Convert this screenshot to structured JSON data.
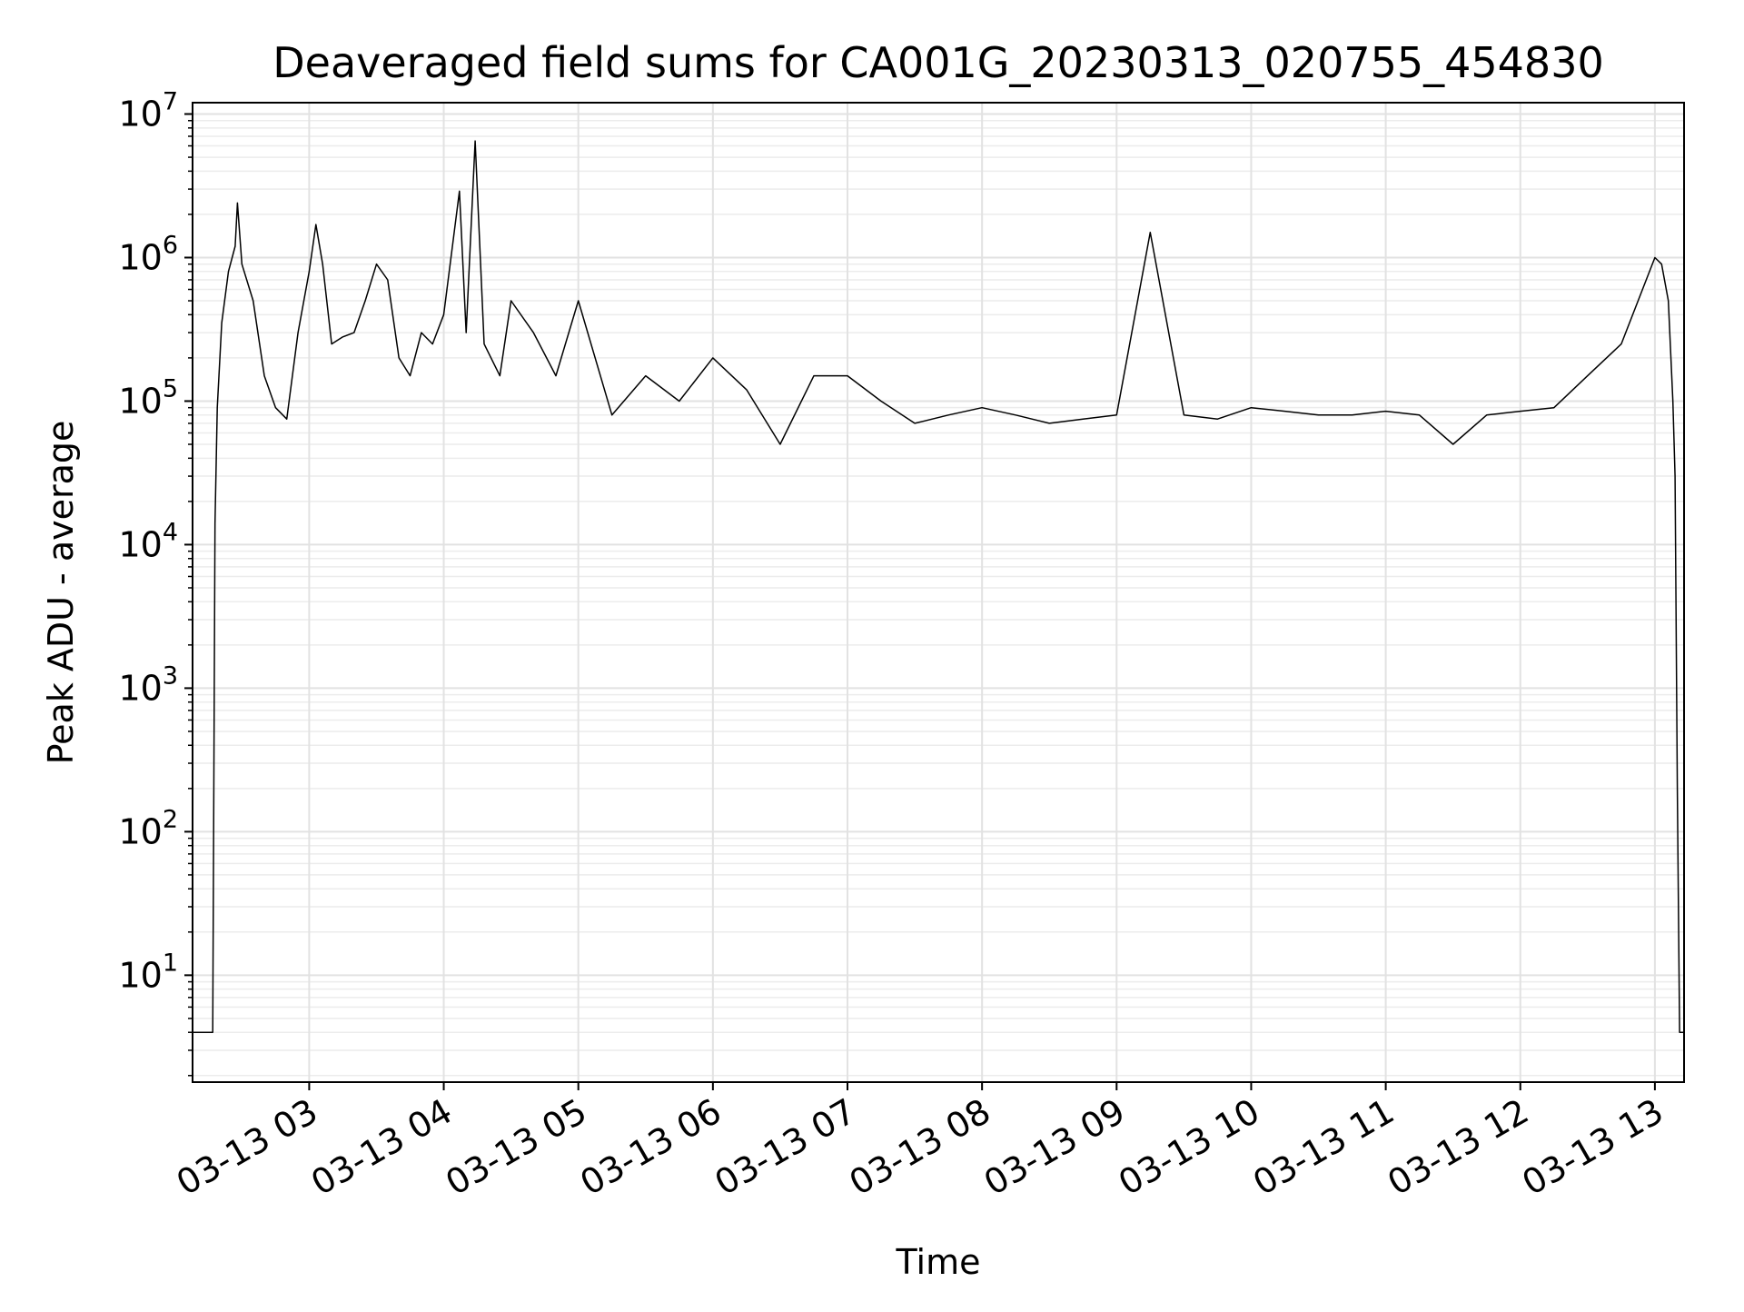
{
  "chart_data": {
    "type": "line",
    "title": "Deaveraged field sums for CA001G_20230313_020755_454830",
    "xlabel": "Time",
    "ylabel": "Peak ADU - average",
    "yscale": "log",
    "xlim": [
      "2023-03-13 02:08",
      "2023-03-13 13:13"
    ],
    "ylim": [
      1.8,
      12000000
    ],
    "grid": true,
    "line_color": "#000000",
    "xticks": [
      {
        "t": "2023-03-13 03:00",
        "label": "03-13 03"
      },
      {
        "t": "2023-03-13 04:00",
        "label": "03-13 04"
      },
      {
        "t": "2023-03-13 05:00",
        "label": "03-13 05"
      },
      {
        "t": "2023-03-13 06:00",
        "label": "03-13 06"
      },
      {
        "t": "2023-03-13 07:00",
        "label": "03-13 07"
      },
      {
        "t": "2023-03-13 08:00",
        "label": "03-13 08"
      },
      {
        "t": "2023-03-13 09:00",
        "label": "03-13 09"
      },
      {
        "t": "2023-03-13 10:00",
        "label": "03-13 10"
      },
      {
        "t": "2023-03-13 11:00",
        "label": "03-13 11"
      },
      {
        "t": "2023-03-13 12:00",
        "label": "03-13 12"
      },
      {
        "t": "2023-03-13 13:00",
        "label": "03-13 13"
      }
    ],
    "yticks": [
      {
        "value": 10,
        "base": "10",
        "exp": "1"
      },
      {
        "value": 100,
        "base": "10",
        "exp": "2"
      },
      {
        "value": 1000,
        "base": "10",
        "exp": "3"
      },
      {
        "value": 10000,
        "base": "10",
        "exp": "4"
      },
      {
        "value": 100000,
        "base": "10",
        "exp": "5"
      },
      {
        "value": 1000000,
        "base": "10",
        "exp": "6"
      },
      {
        "value": 10000000,
        "base": "10",
        "exp": "7"
      }
    ],
    "series": [
      {
        "points": [
          [
            "2023-03-13 02:08",
            4
          ],
          [
            "2023-03-13 02:17",
            4
          ],
          [
            "2023-03-13 02:18",
            14000
          ],
          [
            "2023-03-13 02:19",
            90000
          ],
          [
            "2023-03-13 02:21",
            350000
          ],
          [
            "2023-03-13 02:24",
            800000
          ],
          [
            "2023-03-13 02:27",
            1200000
          ],
          [
            "2023-03-13 02:28",
            2400000
          ],
          [
            "2023-03-13 02:30",
            900000
          ],
          [
            "2023-03-13 02:35",
            500000
          ],
          [
            "2023-03-13 02:40",
            150000
          ],
          [
            "2023-03-13 02:45",
            90000
          ],
          [
            "2023-03-13 02:50",
            75000
          ],
          [
            "2023-03-13 02:55",
            300000
          ],
          [
            "2023-03-13 03:00",
            800000
          ],
          [
            "2023-03-13 03:03",
            1700000
          ],
          [
            "2023-03-13 03:06",
            900000
          ],
          [
            "2023-03-13 03:10",
            250000
          ],
          [
            "2023-03-13 03:15",
            280000
          ],
          [
            "2023-03-13 03:20",
            300000
          ],
          [
            "2023-03-13 03:25",
            500000
          ],
          [
            "2023-03-13 03:30",
            900000
          ],
          [
            "2023-03-13 03:35",
            700000
          ],
          [
            "2023-03-13 03:40",
            200000
          ],
          [
            "2023-03-13 03:45",
            150000
          ],
          [
            "2023-03-13 03:50",
            300000
          ],
          [
            "2023-03-13 03:55",
            250000
          ],
          [
            "2023-03-13 04:00",
            400000
          ],
          [
            "2023-03-13 04:07",
            2900000
          ],
          [
            "2023-03-13 04:10",
            300000
          ],
          [
            "2023-03-13 04:14",
            6500000
          ],
          [
            "2023-03-13 04:18",
            250000
          ],
          [
            "2023-03-13 04:25",
            150000
          ],
          [
            "2023-03-13 04:30",
            500000
          ],
          [
            "2023-03-13 04:40",
            300000
          ],
          [
            "2023-03-13 04:50",
            150000
          ],
          [
            "2023-03-13 05:00",
            500000
          ],
          [
            "2023-03-13 05:15",
            80000
          ],
          [
            "2023-03-13 05:30",
            150000
          ],
          [
            "2023-03-13 05:45",
            100000
          ],
          [
            "2023-03-13 06:00",
            200000
          ],
          [
            "2023-03-13 06:15",
            120000
          ],
          [
            "2023-03-13 06:30",
            50000
          ],
          [
            "2023-03-13 06:45",
            150000
          ],
          [
            "2023-03-13 07:00",
            150000
          ],
          [
            "2023-03-13 07:15",
            100000
          ],
          [
            "2023-03-13 07:30",
            70000
          ],
          [
            "2023-03-13 07:45",
            80000
          ],
          [
            "2023-03-13 08:00",
            90000
          ],
          [
            "2023-03-13 08:15",
            80000
          ],
          [
            "2023-03-13 08:30",
            70000
          ],
          [
            "2023-03-13 08:45",
            75000
          ],
          [
            "2023-03-13 09:00",
            80000
          ],
          [
            "2023-03-13 09:15",
            1500000
          ],
          [
            "2023-03-13 09:30",
            80000
          ],
          [
            "2023-03-13 09:45",
            75000
          ],
          [
            "2023-03-13 10:00",
            90000
          ],
          [
            "2023-03-13 10:15",
            85000
          ],
          [
            "2023-03-13 10:30",
            80000
          ],
          [
            "2023-03-13 10:45",
            80000
          ],
          [
            "2023-03-13 11:00",
            85000
          ],
          [
            "2023-03-13 11:15",
            80000
          ],
          [
            "2023-03-13 11:30",
            50000
          ],
          [
            "2023-03-13 11:45",
            80000
          ],
          [
            "2023-03-13 12:00",
            85000
          ],
          [
            "2023-03-13 12:15",
            90000
          ],
          [
            "2023-03-13 12:30",
            150000
          ],
          [
            "2023-03-13 12:45",
            250000
          ],
          [
            "2023-03-13 13:00",
            1000000
          ],
          [
            "2023-03-13 13:03",
            900000
          ],
          [
            "2023-03-13 13:06",
            500000
          ],
          [
            "2023-03-13 13:08",
            100000
          ],
          [
            "2023-03-13 13:09",
            30000
          ],
          [
            "2023-03-13 13:10",
            200
          ],
          [
            "2023-03-13 13:11",
            4
          ],
          [
            "2023-03-13 13:13",
            4
          ]
        ]
      }
    ]
  }
}
